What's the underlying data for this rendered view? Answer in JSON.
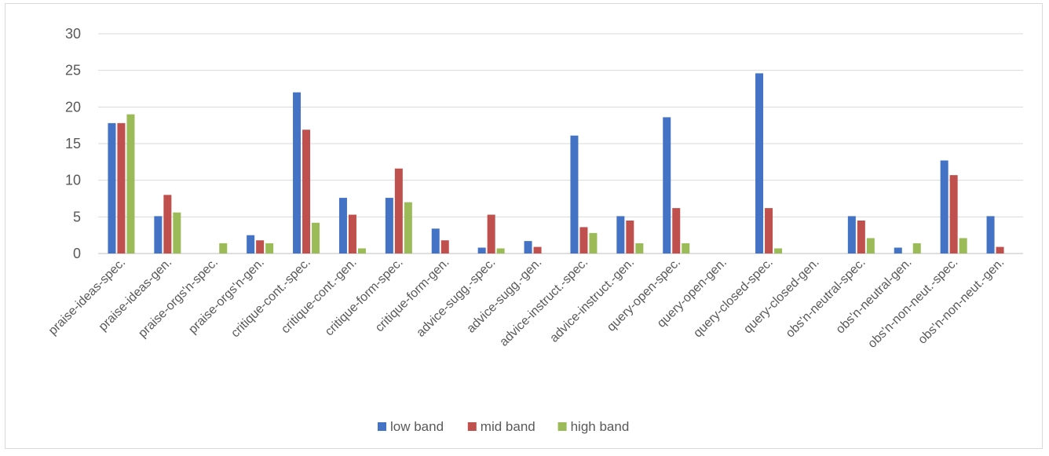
{
  "chart_data": {
    "type": "bar",
    "title": "",
    "xlabel": "",
    "ylabel": "",
    "ylim": [
      0,
      30
    ],
    "yticks": [
      0,
      5,
      10,
      15,
      20,
      25,
      30
    ],
    "grid": true,
    "legend_position": "bottom",
    "categories": [
      "praise-ideas-spec.",
      "praise-ideas-gen.",
      "praise-orgs'n-spec.",
      "praise-orgs'n-gen.",
      "critique-cont.-spec.",
      "critique-cont.-gen.",
      "critique-form-spec.",
      "critique-form-gen.",
      "advice-sugg.-spec.",
      "advice-sugg.-gen.",
      "advice-instruct.-spec.",
      "advice-instruct.-gen.",
      "query-open-spec.",
      "query-open-gen.",
      "query-closed-spec.",
      "query-closed-gen.",
      "obs'n-neutral-spec.",
      "obs'n-neutral-gen.",
      "obs'n-non-neut.-spec.",
      "obs'n-non-neut.-gen."
    ],
    "series": [
      {
        "name": "low band",
        "color": "#4472c4",
        "values": [
          17.8,
          5.1,
          0,
          2.5,
          22.0,
          7.6,
          7.6,
          3.4,
          0.8,
          1.7,
          16.1,
          5.1,
          18.6,
          0,
          24.6,
          0,
          5.1,
          0.8,
          12.7,
          5.1
        ]
      },
      {
        "name": "mid band",
        "color": "#c0504d",
        "values": [
          17.8,
          8.0,
          0,
          1.8,
          16.9,
          5.3,
          11.6,
          1.8,
          5.3,
          0.9,
          3.6,
          4.5,
          6.2,
          0,
          6.2,
          0,
          4.5,
          0,
          10.7,
          0.9
        ]
      },
      {
        "name": "high band",
        "color": "#9bbb59",
        "values": [
          19.0,
          5.6,
          1.4,
          1.4,
          4.2,
          0.7,
          7.0,
          0,
          0.7,
          0,
          2.8,
          1.4,
          1.4,
          0,
          0.7,
          0,
          2.1,
          1.4,
          2.1,
          0
        ]
      }
    ]
  }
}
